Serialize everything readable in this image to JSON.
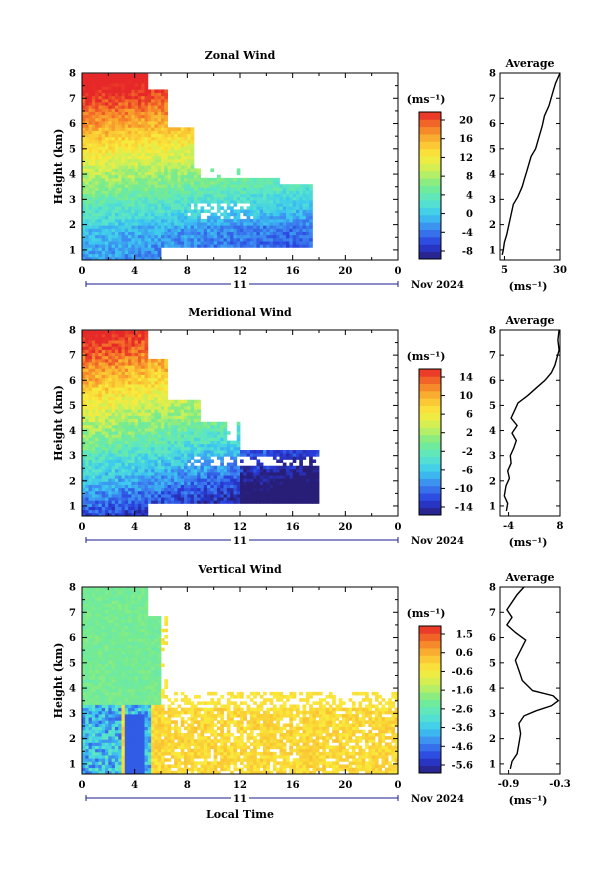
{
  "chart_data": [
    {
      "type": "heatmap",
      "title": "Zonal Wind",
      "ylabel": "Height (km)",
      "xticks": [
        "0",
        "4",
        "8",
        "12",
        "16",
        "20",
        "0"
      ],
      "yticks": [
        "1",
        "2",
        "3",
        "4",
        "5",
        "6",
        "7",
        "8"
      ],
      "xlim": [
        0,
        24
      ],
      "ylim": [
        0.6,
        8
      ],
      "day_label": "11",
      "date_label": "Nov 2024",
      "colorbar": {
        "unit": "(ms⁻¹)",
        "min": -10,
        "max": 22,
        "ticks": [
          "-8",
          "-4",
          "0",
          "4",
          "8",
          "12",
          "16",
          "20"
        ]
      },
      "fields": {
        "kind": "zonal",
        "obs_end_hour": 17.5
      },
      "profile": {
        "title": "Average",
        "xlabel": "(ms⁻¹)",
        "xticks": [
          "5",
          "30"
        ],
        "xlim": [
          3,
          30
        ],
        "x": [
          4,
          4.5,
          5,
          6,
          7,
          8,
          9,
          11,
          13,
          14,
          15,
          16,
          17,
          19,
          20,
          21,
          22,
          23,
          25,
          26,
          27,
          28,
          29,
          30
        ],
        "y": [
          0.8,
          1.0,
          1.3,
          1.6,
          2.0,
          2.4,
          2.8,
          3.1,
          3.5,
          3.8,
          4.1,
          4.4,
          4.7,
          5.0,
          5.3,
          5.6,
          5.9,
          6.3,
          6.7,
          7.0,
          7.3,
          7.6,
          7.8,
          8.0
        ]
      }
    },
    {
      "type": "heatmap",
      "title": "Meridional Wind",
      "ylabel": "Height (km)",
      "xticks": [
        "0",
        "4",
        "8",
        "12",
        "16",
        "20",
        "0"
      ],
      "yticks": [
        "1",
        "2",
        "3",
        "4",
        "5",
        "6",
        "7",
        "8"
      ],
      "xlim": [
        0,
        24
      ],
      "ylim": [
        0.6,
        8
      ],
      "day_label": "11",
      "date_label": "Nov 2024",
      "colorbar": {
        "unit": "(ms⁻¹)",
        "min": -16,
        "max": 17,
        "ticks": [
          "-14",
          "-10",
          "-6",
          "-2",
          "2",
          "6",
          "10",
          "14"
        ]
      },
      "fields": {
        "kind": "meridional",
        "obs_end_hour": 18
      },
      "profile": {
        "title": "Average",
        "xlabel": "(ms⁻¹)",
        "xticks": [
          "-4",
          "8"
        ],
        "xlim": [
          -6,
          8
        ],
        "x": [
          -4.5,
          -4.2,
          -5,
          -4.6,
          -3.8,
          -4.2,
          -3.4,
          -3.6,
          -2.8,
          -2.2,
          -3.2,
          -2.0,
          -3.4,
          -2.6,
          -1.8,
          0.5,
          2.5,
          4.5,
          6,
          6.8,
          7.3,
          7.8,
          7.5,
          7.8
        ],
        "y": [
          0.8,
          1.1,
          1.4,
          1.8,
          2.1,
          2.4,
          2.7,
          3.0,
          3.3,
          3.6,
          3.9,
          4.2,
          4.5,
          4.8,
          5.1,
          5.4,
          5.7,
          6.0,
          6.3,
          6.6,
          6.9,
          7.2,
          7.6,
          8.0
        ]
      }
    },
    {
      "type": "heatmap",
      "title": "Vertical Wind",
      "ylabel": "Height (km)",
      "xlabel": "Local Time",
      "xticks": [
        "0",
        "4",
        "8",
        "12",
        "16",
        "20",
        "0"
      ],
      "yticks": [
        "1",
        "2",
        "3",
        "4",
        "5",
        "6",
        "7",
        "8"
      ],
      "xlim": [
        0,
        24
      ],
      "ylim": [
        0.6,
        8
      ],
      "day_label": "11",
      "date_label": "Nov 2024",
      "colorbar": {
        "unit": "(ms⁻¹)",
        "min": -6.2,
        "max": 2.0,
        "ticks": [
          "-5.6",
          "-4.6",
          "-3.6",
          "-2.6",
          "-1.6",
          "-0.6",
          "0.6",
          "1.5"
        ]
      },
      "fields": {
        "kind": "vertical",
        "obs_end_hour": 24
      },
      "profile": {
        "title": "Average",
        "xlabel": "(ms⁻¹)",
        "xticks": [
          "-0.9",
          "-0.3"
        ],
        "xlim": [
          -1.0,
          -0.3
        ],
        "x": [
          -0.88,
          -0.86,
          -0.8,
          -0.78,
          -0.76,
          -0.78,
          -0.72,
          -0.58,
          -0.4,
          -0.32,
          -0.38,
          -0.62,
          -0.74,
          -0.78,
          -0.82,
          -0.76,
          -0.7,
          -0.82,
          -0.92,
          -0.86,
          -0.92,
          -0.86,
          -0.8,
          -0.72
        ],
        "y": [
          0.8,
          1.1,
          1.4,
          1.8,
          2.2,
          2.6,
          2.9,
          3.1,
          3.3,
          3.5,
          3.7,
          3.9,
          4.3,
          4.7,
          5.1,
          5.5,
          5.9,
          6.2,
          6.5,
          6.8,
          7.1,
          7.4,
          7.7,
          8.0
        ]
      }
    }
  ]
}
